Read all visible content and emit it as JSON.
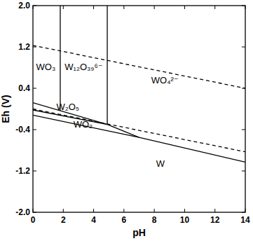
{
  "chart_data": {
    "type": "line",
    "x_label": "pH",
    "y_label": "Eh (V)",
    "xlim": [
      0,
      14
    ],
    "ylim": [
      -2.0,
      2.0
    ],
    "xticks": [
      0,
      2,
      4,
      6,
      8,
      10,
      12,
      14
    ],
    "yticks": [
      {
        "value": -2.0,
        "label": "-2.0"
      },
      {
        "value": -1.2,
        "label": "-1.2"
      },
      {
        "value": -0.4,
        "label": "-0.4"
      },
      {
        "value": 0.4,
        "label": "0.4"
      },
      {
        "value": 1.2,
        "label": "1.2"
      },
      {
        "value": 2.0,
        "label": "2.0"
      }
    ],
    "grid": false,
    "series": [
      {
        "color": "#000000",
        "line_style": "dashed",
        "x": [
          0,
          14
        ],
        "values": [
          1.23,
          0.4
        ]
      },
      {
        "color": "#000000",
        "line_style": "dashed",
        "x": [
          0,
          14
        ],
        "values": [
          0.0,
          -0.83
        ]
      },
      {
        "color": "#000000",
        "line_style": "solid",
        "x": [
          1.8,
          1.8
        ],
        "values": [
          2.0,
          -0.03
        ]
      },
      {
        "color": "#000000",
        "line_style": "solid",
        "x": [
          4.9,
          4.9
        ],
        "values": [
          2.0,
          -0.3
        ]
      },
      {
        "color": "#000000",
        "line_style": "solid",
        "x": [
          0,
          4.9
        ],
        "values": [
          0.12,
          -0.3
        ]
      },
      {
        "color": "#000000",
        "line_style": "solid",
        "x": [
          0,
          4.9
        ],
        "values": [
          -0.02,
          -0.3
        ]
      },
      {
        "color": "#000000",
        "line_style": "solid",
        "x": [
          0,
          7
        ],
        "values": [
          -0.12,
          -0.55
        ]
      },
      {
        "color": "#000000",
        "line_style": "solid",
        "x": [
          4.9,
          7
        ],
        "values": [
          -0.3,
          -0.55
        ]
      },
      {
        "color": "#000000",
        "line_style": "solid",
        "x": [
          7,
          14
        ],
        "values": [
          -0.55,
          -1.03
        ]
      }
    ],
    "annotations": [
      {
        "text": "WO₃",
        "x": 0.85,
        "y": 0.75
      },
      {
        "text": "W₁₂O₃₉⁶⁻",
        "x": 3.35,
        "y": 0.75
      },
      {
        "text": "WO₄²⁻",
        "x": 8.7,
        "y": 0.5
      },
      {
        "text": "W₂O₅",
        "x": 2.3,
        "y": -0.02
      },
      {
        "text": "WO₂",
        "x": 3.3,
        "y": -0.36
      },
      {
        "text": "W",
        "x": 8.4,
        "y": -1.12
      }
    ]
  }
}
